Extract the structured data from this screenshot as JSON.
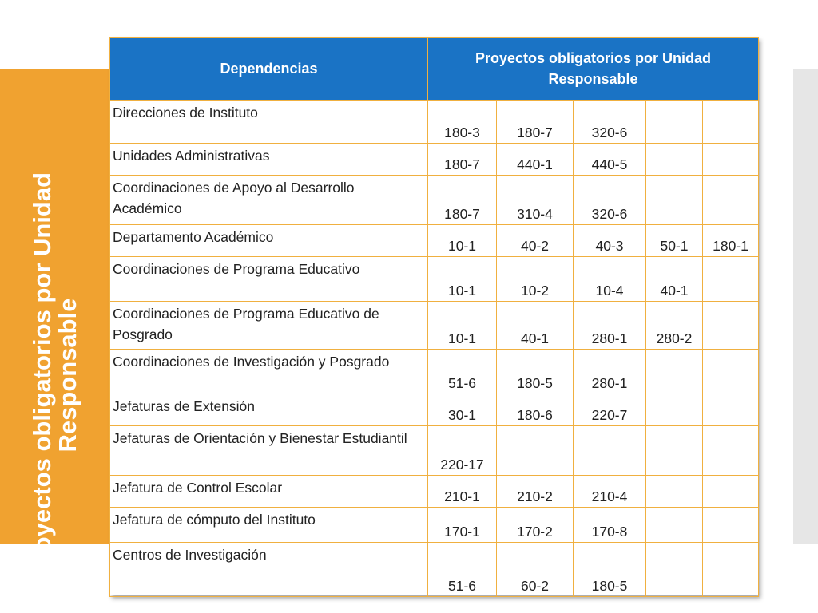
{
  "side_title": "Proyectos obligatorios por Unidad Responsable",
  "table": {
    "headers": {
      "dependencias": "Dependencias",
      "proyectos": "Proyectos obligatorios por Unidad Responsable"
    },
    "rows": [
      {
        "dependencia": "Direcciones de Instituto",
        "codes": [
          "180-3",
          "180-7",
          "320-6",
          "",
          ""
        ]
      },
      {
        "dependencia": "Unidades Administrativas",
        "codes": [
          "180-7",
          "440-1",
          "440-5",
          "",
          ""
        ]
      },
      {
        "dependencia": "Coordinaciones de Apoyo al Desarrollo Académico",
        "codes": [
          "180-7",
          "310-4",
          "320-6",
          "",
          ""
        ]
      },
      {
        "dependencia": "Departamento Académico",
        "codes": [
          "10-1",
          "40-2",
          "40-3",
          "50-1",
          "180-1"
        ]
      },
      {
        "dependencia": "Coordinaciones de Programa Educativo",
        "codes": [
          "10-1",
          "10-2",
          "10-4",
          "40-1",
          ""
        ]
      },
      {
        "dependencia": "Coordinaciones de Programa Educativo de Posgrado",
        "codes": [
          "10-1",
          "40-1",
          "280-1",
          "280-2",
          ""
        ]
      },
      {
        "dependencia": "Coordinaciones de Investigación y Posgrado",
        "codes": [
          "51-6",
          "180-5",
          "280-1",
          "",
          ""
        ]
      },
      {
        "dependencia": "Jefaturas de Extensión",
        "codes": [
          "30-1",
          "180-6",
          "220-7",
          "",
          ""
        ]
      },
      {
        "dependencia": "Jefaturas de Orientación y Bienestar Estudiantil",
        "codes": [
          "220-17",
          "",
          "",
          "",
          ""
        ]
      },
      {
        "dependencia": "Jefatura de Control Escolar",
        "codes": [
          "210-1",
          "210-2",
          "210-4",
          "",
          ""
        ]
      },
      {
        "dependencia": "Jefatura de cómputo del Instituto",
        "codes": [
          "170-1",
          "170-2",
          "170-8",
          "",
          ""
        ]
      },
      {
        "dependencia": "Centros de Investigación",
        "codes": [
          "51-6",
          "60-2",
          "180-5",
          "",
          ""
        ]
      }
    ]
  },
  "colors": {
    "banner": "#f0a230",
    "header": "#1a73c5",
    "grid": "#f0b040",
    "right_bar": "#e6e6e6"
  }
}
